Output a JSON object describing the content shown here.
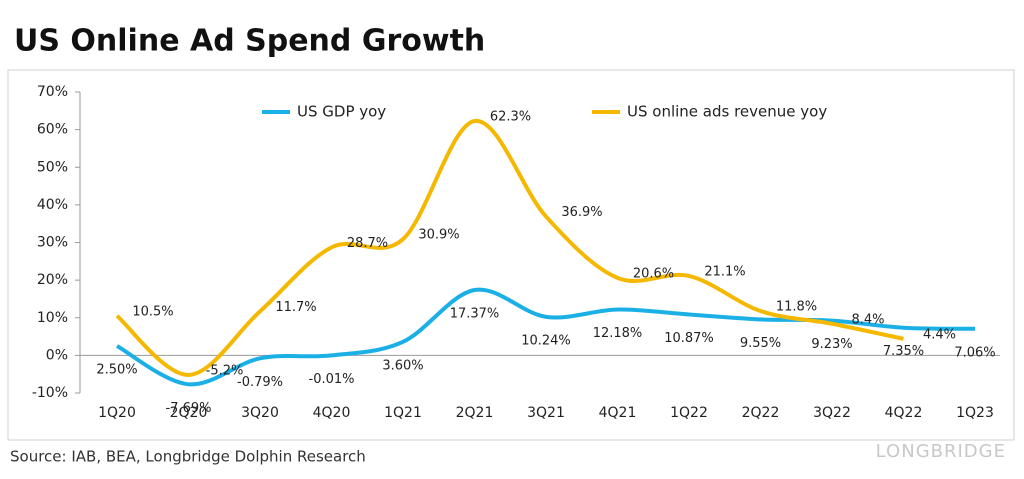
{
  "chart_data": {
    "type": "line",
    "title": "US Online Ad Spend Growth",
    "source": "Source: IAB, BEA, Longbridge Dolphin Research",
    "brand": "LONGBRIDGE",
    "categories": [
      "1Q20",
      "2Q20",
      "3Q20",
      "4Q20",
      "1Q21",
      "2Q21",
      "3Q21",
      "4Q21",
      "1Q22",
      "2Q22",
      "3Q22",
      "4Q22",
      "1Q23"
    ],
    "series": [
      {
        "name": "US GDP yoy",
        "color": "#1ab0e6",
        "values": [
          2.5,
          -7.69,
          -0.79,
          -0.01,
          3.6,
          17.37,
          10.24,
          12.18,
          10.87,
          9.55,
          9.23,
          7.35,
          7.06
        ],
        "value_labels": [
          "2.50%",
          "-7.69%",
          "-0.79%",
          "-0.01%",
          "3.60%",
          "17.37%",
          "10.24%",
          "12.18%",
          "10.87%",
          "9.55%",
          "9.23%",
          "7.35%",
          "7.06%"
        ]
      },
      {
        "name": "US online ads revenue yoy",
        "color": "#f5b800",
        "values": [
          10.5,
          -5.2,
          11.7,
          28.7,
          30.9,
          62.3,
          36.9,
          20.6,
          21.1,
          11.8,
          8.4,
          4.4,
          null
        ],
        "value_labels": [
          "10.5%",
          "-5.2%",
          "11.7%",
          "28.7%",
          "30.9%",
          "62.3%",
          "36.9%",
          "20.6%",
          "21.1%",
          "11.8%",
          "8.4%",
          "4.4%",
          null
        ]
      }
    ],
    "ylim": [
      -10,
      70
    ],
    "yticks": [
      {
        "value": -10,
        "label": "-10%"
      },
      {
        "value": 0,
        "label": "0%"
      },
      {
        "value": 10,
        "label": "10%"
      },
      {
        "value": 20,
        "label": "20%"
      },
      {
        "value": 30,
        "label": "30%"
      },
      {
        "value": 40,
        "label": "40%"
      },
      {
        "value": 50,
        "label": "50%"
      },
      {
        "value": 60,
        "label": "60%"
      },
      {
        "value": 70,
        "label": "70%"
      }
    ],
    "grid": false
  }
}
